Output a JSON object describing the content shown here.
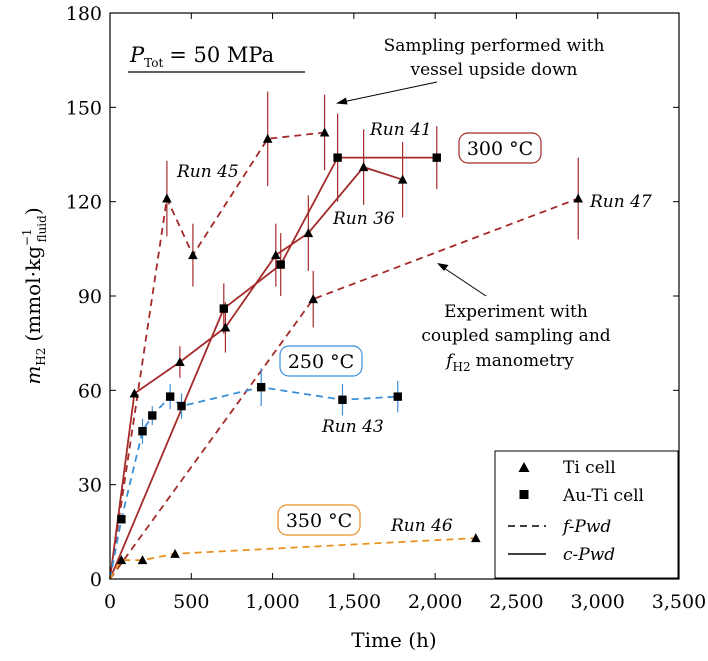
{
  "chart_data": {
    "type": "line",
    "xlabel": "Time (h)",
    "ylabel": "m_H2 (mmol·kg_fluid^-1)",
    "xlim": [
      0,
      3500
    ],
    "ylim": [
      0,
      180
    ],
    "xticks": [
      0,
      500,
      1000,
      1500,
      2000,
      2500,
      3000,
      3500
    ],
    "xtick_labels": [
      "0",
      "500",
      "1,000",
      "1,500",
      "2,000",
      "2,500",
      "3,000",
      "3,500"
    ],
    "yticks": [
      0,
      30,
      60,
      90,
      120,
      150,
      180
    ],
    "ytick_labels": [
      "0",
      "30",
      "60",
      "90",
      "120",
      "150",
      "180"
    ],
    "pressure_label": {
      "symbol": "P",
      "sub": "Tot",
      "value": "= 50 MPa"
    },
    "temperature_labels": [
      {
        "text": "300 °C",
        "color": "#a52a2a"
      },
      {
        "text": "250 °C",
        "color": "#3a8fd9"
      },
      {
        "text": "350 °C",
        "color": "#e8901e"
      }
    ],
    "series": [
      {
        "name": "Run 45",
        "temperature": "300 °C",
        "color": "#a52a2a",
        "dash": "f-Pwd",
        "marker": "triangle",
        "x": [
          0,
          350,
          510,
          970,
          1320
        ],
        "y": [
          0,
          121,
          103,
          140,
          142
        ],
        "err": [
          0,
          12,
          10,
          15,
          12
        ]
      },
      {
        "name": "Run 41",
        "temperature": "300 °C",
        "color": "#a52a2a",
        "dash": "c-Pwd",
        "marker": "square",
        "x": [
          0,
          700,
          1050,
          1400,
          2010
        ],
        "y": [
          0,
          86,
          100,
          134,
          134
        ],
        "err": [
          0,
          8,
          10,
          14,
          10
        ]
      },
      {
        "name": "Run 36",
        "temperature": "300 °C",
        "color": "#a52a2a",
        "dash": "c-Pwd",
        "marker": "triangle",
        "x": [
          0,
          150,
          430,
          710,
          1020,
          1220,
          1560,
          1800
        ],
        "y": [
          0,
          59,
          69,
          80,
          103,
          110,
          131,
          127
        ],
        "err": [
          0,
          0,
          5,
          8,
          10,
          12,
          12,
          12
        ]
      },
      {
        "name": "Run 47",
        "temperature": "300 °C",
        "color": "#a52a2a",
        "dash": "f-Pwd",
        "marker": "triangle",
        "x": [
          0,
          1250,
          2880
        ],
        "y": [
          0,
          89,
          121
        ],
        "err": [
          0,
          9,
          13
        ]
      },
      {
        "name": "Run 43",
        "temperature": "250 °C",
        "color": "#3a8fd9",
        "dash": "f-Pwd",
        "marker": "square",
        "x": [
          0,
          70,
          200,
          260,
          370,
          440,
          930,
          1430,
          1770
        ],
        "y": [
          0,
          19,
          47,
          52,
          58,
          55,
          61,
          57,
          58
        ],
        "err": [
          0,
          0,
          4,
          3,
          4,
          4,
          6,
          5,
          5
        ]
      },
      {
        "name": "Run 46",
        "temperature": "350 °C",
        "color": "#e8901e",
        "dash": "f-Pwd",
        "marker": "triangle",
        "x": [
          0,
          70,
          200,
          400,
          2250
        ],
        "y": [
          0,
          6,
          6,
          8,
          13
        ],
        "err": [
          0,
          0,
          0,
          0,
          0
        ]
      }
    ],
    "annotations": [
      {
        "lines": [
          "Sampling performed with",
          "vessel upside down"
        ],
        "arrow_to": [
          1340,
          150
        ]
      },
      {
        "lines": [
          "Experiment with",
          "coupled sampling and",
          "f_H2 manometry"
        ],
        "arrow_to": [
          1950,
          104
        ]
      }
    ],
    "legend": {
      "position": "bottom-right",
      "entries": [
        {
          "marker": "triangle",
          "label": "Ti cell"
        },
        {
          "marker": "square",
          "label": "Au-Ti cell"
        },
        {
          "line": "dashed",
          "label": "f-Pwd"
        },
        {
          "line": "solid",
          "label": "c-Pwd"
        }
      ]
    }
  }
}
